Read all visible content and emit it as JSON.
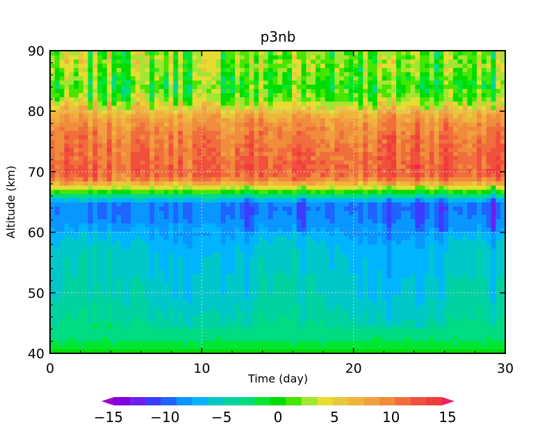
{
  "chart_data": {
    "type": "heatmap",
    "title": "p3nb",
    "xlabel": "Time (day)",
    "ylabel": "Altitude (km)",
    "xlim": [
      0,
      30
    ],
    "ylim": [
      40,
      90
    ],
    "xticks": [
      0,
      10,
      20,
      30
    ],
    "yticks": [
      40,
      50,
      60,
      70,
      80,
      90
    ],
    "xtick_labels": [
      "0",
      "10",
      "20",
      "30"
    ],
    "ytick_labels": [
      "40",
      "50",
      "60",
      "70",
      "80",
      "90"
    ],
    "grid": true,
    "colorbar": {
      "position": "bottom",
      "min": -15,
      "max": 15,
      "step": 1.5,
      "tick_values": [
        -15,
        -10,
        -5,
        0,
        5,
        10,
        15
      ],
      "tick_labels": [
        "−15",
        "−10",
        "−5",
        "0",
        "5",
        "10",
        "15"
      ],
      "colors": [
        "#a000c8",
        "#8200dc",
        "#6e1ef0",
        "#3c3cff",
        "#1e64ff",
        "#0a96ff",
        "#00b4ff",
        "#00c8c8",
        "#00d2a0",
        "#00dc82",
        "#00e632",
        "#00dc00",
        "#46e600",
        "#a0e632",
        "#e6dc32",
        "#e6c83c",
        "#f0b43c",
        "#f0a040",
        "#f08c3c",
        "#f06e3c",
        "#f0503c",
        "#f03c3c",
        "#f01e64"
      ],
      "extend": "both"
    },
    "mean_profile": {
      "altitude_km": [
        40,
        42,
        44,
        46,
        48,
        50,
        52,
        54,
        56,
        58,
        60,
        62,
        64,
        65,
        66,
        67,
        68,
        69,
        70,
        72,
        74,
        76,
        78,
        80,
        82,
        84,
        86,
        88,
        90
      ],
      "value": [
        0,
        -2,
        -3,
        -4,
        -4.5,
        -5,
        -5,
        -5.5,
        -5.5,
        -6,
        -7,
        -8,
        -8.5,
        -8,
        -3,
        2,
        6,
        10,
        11,
        10.5,
        10,
        9.5,
        8.5,
        6,
        2,
        0.5,
        1.5,
        2.5,
        1.5
      ]
    },
    "seed": 7
  }
}
